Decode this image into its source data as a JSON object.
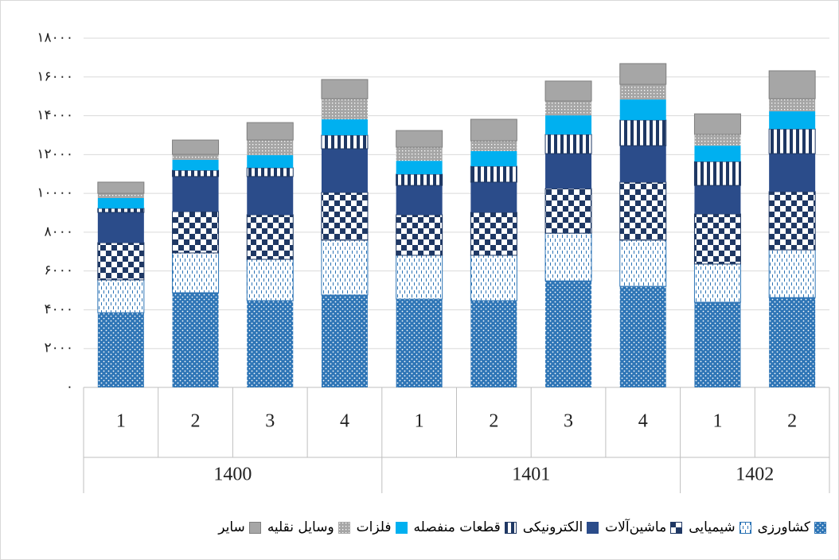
{
  "chart_data": {
    "type": "stacked_bar",
    "categories": [
      "1",
      "2",
      "3",
      "4",
      "1",
      "2",
      "3",
      "4",
      "1",
      "2"
    ],
    "groups": [
      {
        "label": "1400",
        "span": 4
      },
      {
        "label": "1401",
        "span": 4
      },
      {
        "label": "1402",
        "span": 2
      }
    ],
    "ylim": [
      0,
      18000
    ],
    "yticks": [
      {
        "value": 0,
        "label": "۰"
      },
      {
        "value": 2000,
        "label": "۲۰۰۰"
      },
      {
        "value": 4000,
        "label": "۴۰۰۰"
      },
      {
        "value": 6000,
        "label": "۶۰۰۰"
      },
      {
        "value": 8000,
        "label": "۸۰۰۰"
      },
      {
        "value": 10000,
        "label": "۱۰۰۰۰"
      },
      {
        "value": 12000,
        "label": "۱۲۰۰۰"
      },
      {
        "value": 14000,
        "label": "۱۴۰۰۰"
      },
      {
        "value": 16000,
        "label": "۱۶۰۰۰"
      },
      {
        "value": 18000,
        "label": "۱۸۰۰۰"
      }
    ],
    "grid": true,
    "legend": "bottom",
    "series": [
      {
        "name": "کشاورزی",
        "color": "#2e75b6",
        "pattern": "dots",
        "values": [
          3850,
          4880,
          4470,
          4760,
          4550,
          4470,
          5490,
          5210,
          4390,
          4630
        ]
      },
      {
        "name": "شیمیایی",
        "color": "#2e75b6",
        "pattern": "dashes",
        "values": [
          1690,
          2050,
          2130,
          2830,
          2260,
          2340,
          2460,
          2380,
          1970,
          2460
        ]
      },
      {
        "name": "ماشین‌آلات",
        "color": "#1f3864",
        "pattern": "checker",
        "values": [
          1920,
          2130,
          2300,
          2460,
          2090,
          2210,
          2300,
          2990,
          2580,
          3000
        ]
      },
      {
        "name": "الکترونیکی",
        "color": "#2b4c8a",
        "pattern": "solid",
        "values": [
          1560,
          1810,
          1970,
          2250,
          1510,
          1560,
          1800,
          1880,
          1470,
          1960
        ]
      },
      {
        "name": "قطعات منفصله",
        "color": "#1f3864",
        "pattern": "stripes",
        "values": [
          210,
          320,
          450,
          700,
          580,
          820,
          990,
          1320,
          1230,
          1270
        ]
      },
      {
        "name": "فلزات",
        "color": "#00b0f0",
        "pattern": "solid",
        "values": [
          530,
          540,
          650,
          820,
          690,
          780,
          980,
          1060,
          820,
          910
        ]
      },
      {
        "name": "وسایل نقلیه",
        "color": "#a6a6a6",
        "pattern": "grid-dots",
        "values": [
          240,
          280,
          780,
          1060,
          700,
          530,
          740,
          780,
          580,
          650
        ]
      },
      {
        "name": "سایر",
        "color": "#a6a6a6",
        "pattern": "outlined",
        "values": [
          580,
          740,
          900,
          990,
          860,
          1110,
          1030,
          1070,
          1060,
          1440
        ]
      }
    ]
  }
}
